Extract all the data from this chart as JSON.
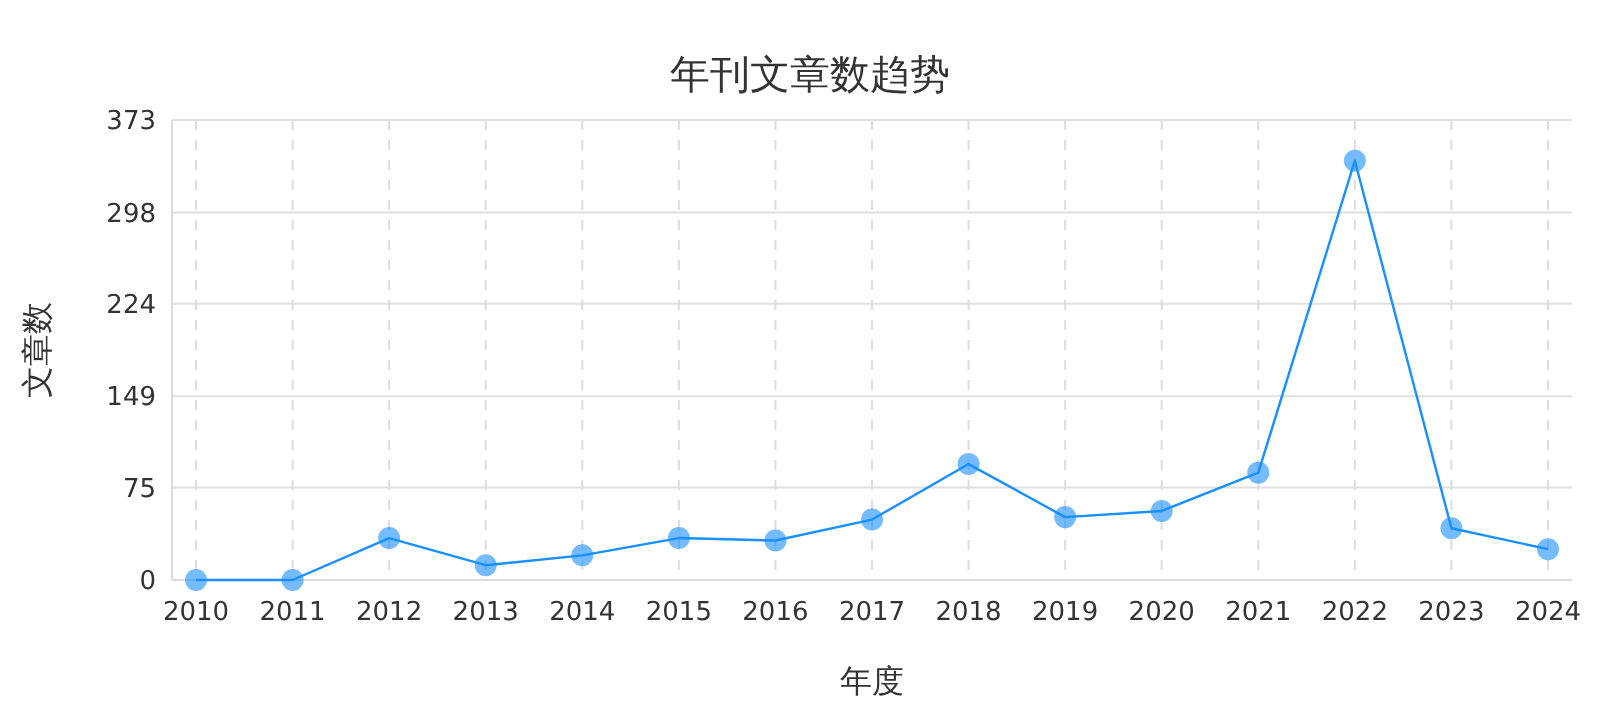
{
  "chart_data": {
    "type": "line",
    "title": "年刊文章数趋势",
    "xlabel": "年度",
    "ylabel": "文章数",
    "categories": [
      "2010",
      "2011",
      "2012",
      "2013",
      "2014",
      "2015",
      "2016",
      "2017",
      "2018",
      "2019",
      "2020",
      "2021",
      "2022",
      "2023",
      "2024"
    ],
    "series": [
      {
        "color": "#1890ff",
        "values": [
          0,
          0,
          34,
          12,
          20,
          34,
          32,
          49,
          94,
          51,
          56,
          87,
          340,
          42,
          25
        ]
      }
    ],
    "ylim": [
      0,
      373
    ],
    "yticks": [
      0,
      75,
      149,
      224,
      298,
      373
    ],
    "grid": true,
    "marker": "circle",
    "line_style": "solid"
  }
}
